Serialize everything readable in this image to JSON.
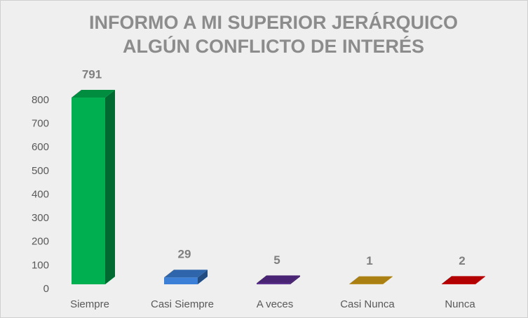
{
  "chart_data": {
    "type": "bar3d",
    "title": [
      "INFORMO A MI SUPERIOR JERÁRQUICO",
      "ALGÚN  CONFLICTO DE INTERÉS"
    ],
    "categories": [
      "Siempre",
      "Casi Siempre",
      "A veces",
      "Casi Nunca",
      "Nunca"
    ],
    "values": [
      791,
      29,
      5,
      1,
      2
    ],
    "colors": [
      "#00b050",
      "#3b7fd6",
      "#5c2d91",
      "#d4a017",
      "#e00000"
    ],
    "ylim": [
      0,
      800
    ],
    "yticks": [
      0,
      100,
      200,
      300,
      400,
      500,
      600,
      700,
      800
    ],
    "grid": false
  }
}
